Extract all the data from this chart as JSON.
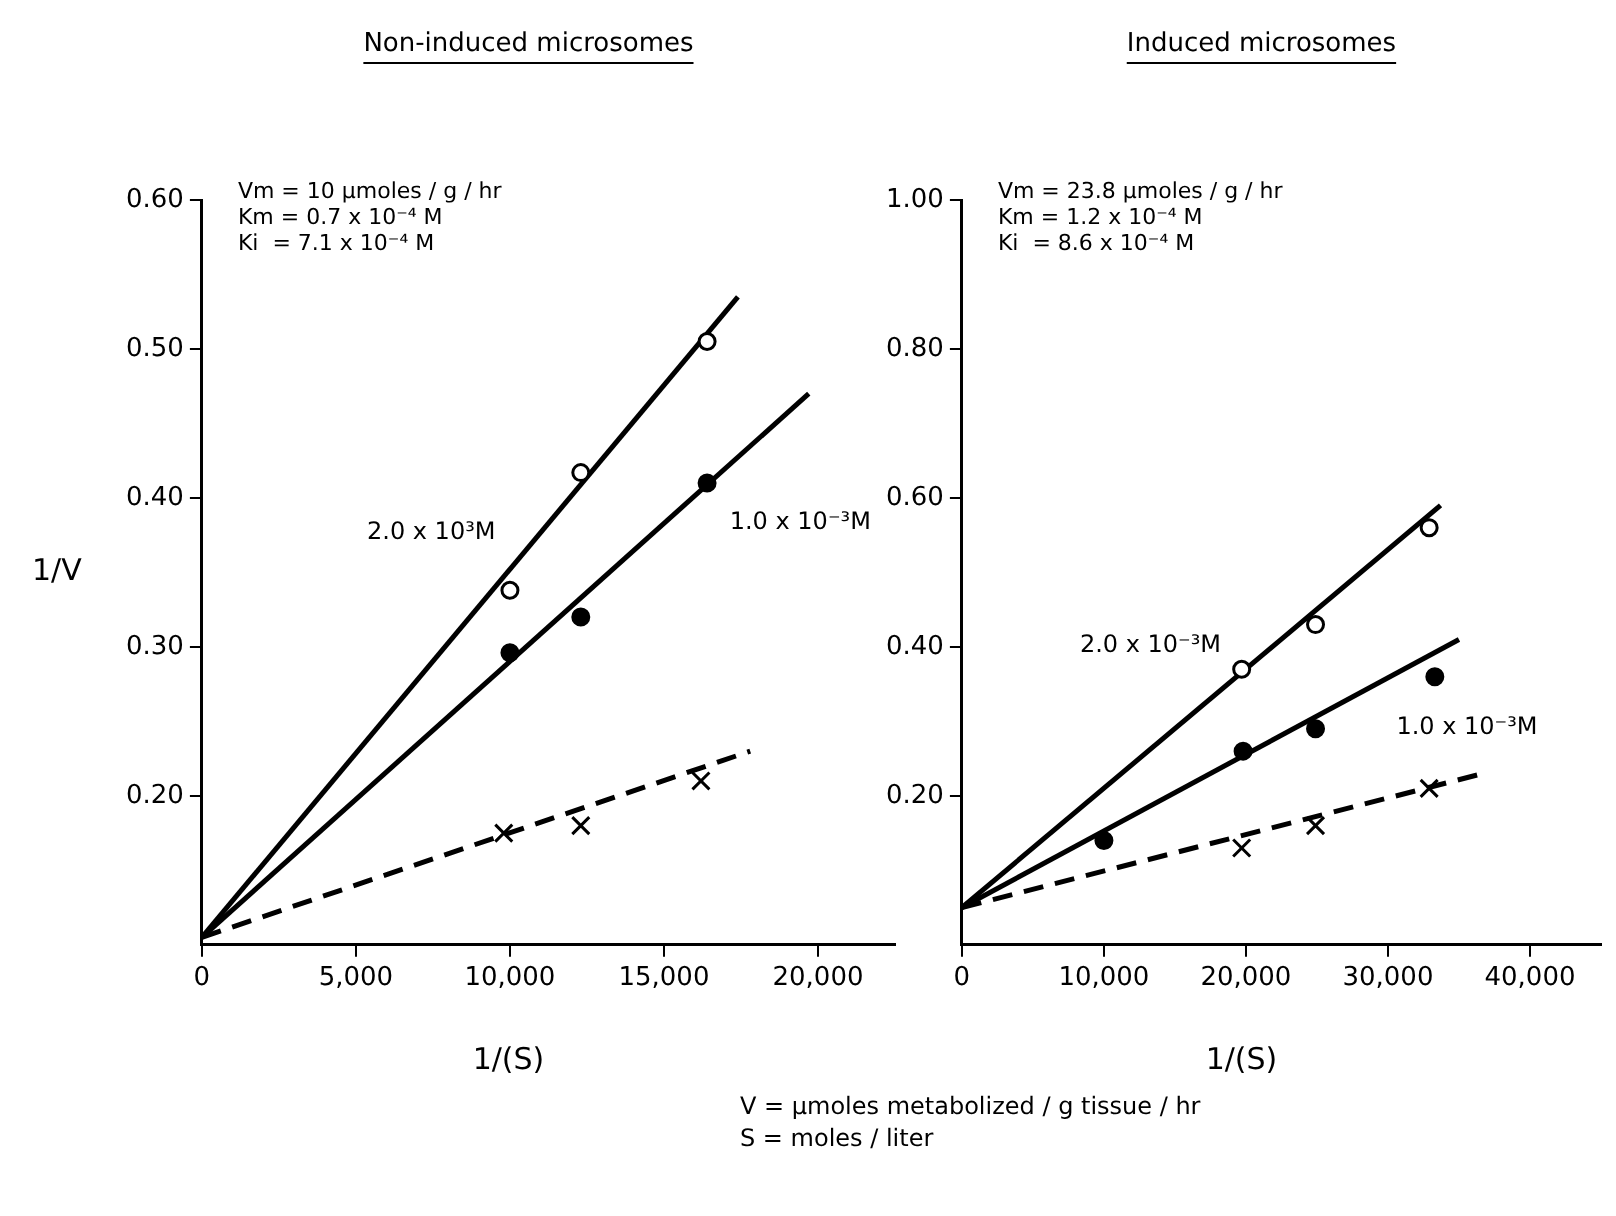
{
  "chart_data": [
    {
      "type": "scatter",
      "title": "Non-induced microsomes",
      "xlabel": "1/(S)",
      "ylabel": "1/V",
      "xlim": [
        0,
        22500
      ],
      "ylim": [
        0.1,
        0.6
      ],
      "xticks": [
        0,
        {
          "value": 5000,
          "label": "5,000"
        },
        {
          "value": 10000,
          "label": "10,000"
        },
        {
          "value": 15000,
          "label": "15,000"
        },
        {
          "value": 20000,
          "label": "20,000"
        }
      ],
      "yticks": [
        {
          "value": 0.2,
          "label": "0.20"
        },
        {
          "value": 0.3,
          "label": "0.30"
        },
        {
          "value": 0.4,
          "label": "0.40"
        },
        {
          "value": 0.5,
          "label": "0.50"
        },
        {
          "value": 0.6,
          "label": "0.60"
        }
      ],
      "grid": false,
      "legend": false,
      "series": [
        {
          "type": "scatter",
          "marker": "circle",
          "color": "#ffffff",
          "x": [
            10000,
            12300,
            16400
          ],
          "values": [
            0.338,
            0.417,
            0.505
          ]
        },
        {
          "type": "scatter",
          "marker": "circle",
          "color": "#000000",
          "x": [
            10000,
            12300,
            16400
          ],
          "values": [
            0.296,
            0.32,
            0.41
          ]
        },
        {
          "type": "scatter",
          "marker": "cross",
          "color": "#000000",
          "x": [
            9800,
            12300,
            16200
          ],
          "values": [
            0.175,
            0.18,
            0.21
          ]
        },
        {
          "type": "line",
          "name": "2.0 x 10³M",
          "marker": "none",
          "line_style": "solid",
          "color": "#000000",
          "x": [
            0,
            17400
          ],
          "values": [
            0.105,
            0.535
          ]
        },
        {
          "type": "line",
          "name": "1.0 x 10⁻³M",
          "marker": "none",
          "line_style": "solid",
          "color": "#000000",
          "x": [
            0,
            19700
          ],
          "values": [
            0.105,
            0.47
          ]
        },
        {
          "type": "line",
          "marker": "none",
          "line_style": "dashed",
          "color": "#000000",
          "x": [
            0,
            17800
          ],
          "values": [
            0.105,
            0.23
          ]
        }
      ],
      "annotations": [
        "Vm = 10 µmoles / g / hr",
        "Km = 0.7 x 10⁻⁴ M",
        "Ki  = 7.1 x 10⁻⁴ M"
      ]
    },
    {
      "type": "scatter",
      "title": "Induced microsomes",
      "xlabel": "1/(S)",
      "xlim": [
        0,
        45000
      ],
      "ylim": [
        0,
        1.0
      ],
      "xticks": [
        0,
        {
          "value": 10000,
          "label": "10,000"
        },
        {
          "value": 20000,
          "label": "20,000"
        },
        {
          "value": 30000,
          "label": "30,000"
        },
        {
          "value": 40000,
          "label": "40,000"
        }
      ],
      "yticks": [
        {
          "value": 0.2,
          "label": "0.20"
        },
        {
          "value": 0.4,
          "label": "0.40"
        },
        {
          "value": 0.6,
          "label": "0.60"
        },
        {
          "value": 0.8,
          "label": "0.80"
        },
        {
          "value": 1.0,
          "label": "1.00"
        }
      ],
      "grid": false,
      "legend": false,
      "series": [
        {
          "type": "scatter",
          "marker": "circle",
          "color": "#ffffff",
          "x": [
            19700,
            24900,
            32900
          ],
          "values": [
            0.37,
            0.43,
            0.56
          ]
        },
        {
          "type": "scatter",
          "marker": "circle",
          "color": "#000000",
          "x": [
            10000,
            19800,
            24900,
            33300
          ],
          "values": [
            0.14,
            0.26,
            0.29,
            0.36
          ]
        },
        {
          "type": "scatter",
          "marker": "cross",
          "color": "#000000",
          "x": [
            19700,
            24900,
            32900
          ],
          "values": [
            0.13,
            0.16,
            0.21
          ]
        },
        {
          "type": "line",
          "name": "2.0 x 10⁻³M",
          "marker": "none",
          "line_style": "solid",
          "color": "#000000",
          "x": [
            0,
            33700
          ],
          "values": [
            0.05,
            0.59
          ]
        },
        {
          "type": "line",
          "name": "1.0 x 10⁻³M",
          "marker": "none",
          "line_style": "solid",
          "color": "#000000",
          "x": [
            0,
            35000
          ],
          "values": [
            0.05,
            0.41
          ]
        },
        {
          "type": "line",
          "marker": "none",
          "line_style": "dashed",
          "color": "#000000",
          "x": [
            0,
            36700
          ],
          "values": [
            0.05,
            0.23
          ]
        }
      ],
      "annotations": [
        "Vm = 23.8 µmoles / g / hr",
        "Km = 1.2 x 10⁻⁴ M",
        "Ki  = 8.6 x 10⁻⁴ M"
      ]
    },
    {
      "type": "other",
      "annotations": [
        "V  =  µmoles metabolized / g tissue / hr",
        "S  =  moles / liter"
      ]
    }
  ]
}
